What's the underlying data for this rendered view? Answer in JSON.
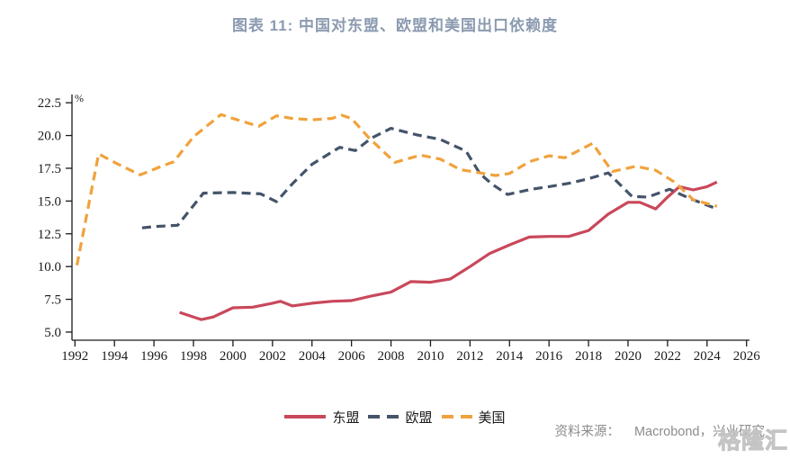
{
  "title": "图表 11:  中国对东盟、欧盟和美国出口依赖度",
  "source": {
    "label": "资料来源：",
    "text": "Macrobond，兴业研究"
  },
  "watermark": "格隆汇",
  "chart_data": {
    "type": "line",
    "title": "图表 11:  中国对东盟、欧盟和美国出口依赖度",
    "unit_label": "%",
    "xlim": [
      1991.85,
      2026.15
    ],
    "ylim": [
      4.38,
      23.13
    ],
    "x_tick_labels": [
      "1992",
      "1994",
      "1996",
      "1998",
      "2000",
      "2002",
      "2004",
      "2006",
      "2008",
      "2010",
      "2012",
      "2014",
      "2016",
      "2018",
      "2020",
      "2022",
      "2024",
      "2026"
    ],
    "y_tick_labels": [
      "5.0",
      "7.5",
      "10.0",
      "12.5",
      "15.0",
      "17.5",
      "20.0",
      "22.5"
    ],
    "grid": false,
    "legend_position": "bottom",
    "axis_color": "#1a1a1a",
    "series": [
      {
        "id": "asean",
        "name": "东盟",
        "color": "#c9485b",
        "style": "solid",
        "points": [
          [
            1997.3,
            6.5
          ],
          [
            1998.4,
            5.95
          ],
          [
            1999,
            6.15
          ],
          [
            2000,
            6.85
          ],
          [
            2001,
            6.9
          ],
          [
            2002,
            7.2
          ],
          [
            2002.4,
            7.35
          ],
          [
            2003,
            7.0
          ],
          [
            2004,
            7.2
          ],
          [
            2005,
            7.35
          ],
          [
            2006,
            7.4
          ],
          [
            2007,
            7.75
          ],
          [
            2008,
            8.05
          ],
          [
            2009,
            8.85
          ],
          [
            2010,
            8.8
          ],
          [
            2011,
            9.05
          ],
          [
            2012,
            10.0
          ],
          [
            2013,
            11.0
          ],
          [
            2014,
            11.65
          ],
          [
            2015,
            12.25
          ],
          [
            2016,
            12.3
          ],
          [
            2017,
            12.3
          ],
          [
            2018,
            12.75
          ],
          [
            2019,
            14.0
          ],
          [
            2020,
            14.9
          ],
          [
            2020.6,
            14.9
          ],
          [
            2021.4,
            14.4
          ],
          [
            2022,
            15.3
          ],
          [
            2022.6,
            16.1
          ],
          [
            2023.3,
            15.85
          ],
          [
            2024,
            16.1
          ],
          [
            2024.5,
            16.45
          ]
        ]
      },
      {
        "id": "eu",
        "name": "欧盟",
        "color": "#44546a",
        "style": "dashed",
        "points": [
          [
            1995.4,
            12.95
          ],
          [
            1996,
            13.05
          ],
          [
            1997.2,
            13.15
          ],
          [
            1998.5,
            15.6
          ],
          [
            2000,
            15.65
          ],
          [
            2001.4,
            15.55
          ],
          [
            2002.2,
            14.95
          ],
          [
            2003,
            16.3
          ],
          [
            2004,
            17.8
          ],
          [
            2005.4,
            19.1
          ],
          [
            2006.2,
            18.85
          ],
          [
            2007,
            19.8
          ],
          [
            2008,
            20.55
          ],
          [
            2009.3,
            20.05
          ],
          [
            2010.5,
            19.7
          ],
          [
            2011.8,
            18.8
          ],
          [
            2012.5,
            17.1
          ],
          [
            2013.1,
            16.3
          ],
          [
            2013.9,
            15.5
          ],
          [
            2015.1,
            15.9
          ],
          [
            2016,
            16.1
          ],
          [
            2017,
            16.35
          ],
          [
            2018,
            16.7
          ],
          [
            2019,
            17.15
          ],
          [
            2020.2,
            15.35
          ],
          [
            2021,
            15.3
          ],
          [
            2022.1,
            15.9
          ],
          [
            2023.2,
            15.15
          ],
          [
            2024.5,
            14.4
          ]
        ]
      },
      {
        "id": "us",
        "name": "美国",
        "color": "#f0a23c",
        "style": "dashed",
        "points": [
          [
            1992.1,
            10.1
          ],
          [
            1993.2,
            18.6
          ],
          [
            1994,
            17.95
          ],
          [
            1995.3,
            17.0
          ],
          [
            1996.3,
            17.6
          ],
          [
            1997,
            18.0
          ],
          [
            1998,
            19.9
          ],
          [
            1999.4,
            21.6
          ],
          [
            2000,
            21.3
          ],
          [
            2001.3,
            20.7
          ],
          [
            2002.2,
            21.5
          ],
          [
            2003,
            21.3
          ],
          [
            2004,
            21.2
          ],
          [
            2005,
            21.3
          ],
          [
            2005.5,
            21.55
          ],
          [
            2006,
            21.3
          ],
          [
            2006.9,
            19.8
          ],
          [
            2008.2,
            17.95
          ],
          [
            2009.5,
            18.5
          ],
          [
            2010.5,
            18.2
          ],
          [
            2011.5,
            17.4
          ],
          [
            2012.5,
            17.15
          ],
          [
            2013.3,
            16.95
          ],
          [
            2014,
            17.1
          ],
          [
            2015,
            18.0
          ],
          [
            2016,
            18.45
          ],
          [
            2016.8,
            18.3
          ],
          [
            2018.2,
            19.4
          ],
          [
            2019.2,
            17.25
          ],
          [
            2020.4,
            17.65
          ],
          [
            2021.4,
            17.35
          ],
          [
            2022.4,
            16.4
          ],
          [
            2023.3,
            15.1
          ],
          [
            2024.5,
            14.6
          ]
        ]
      }
    ]
  }
}
